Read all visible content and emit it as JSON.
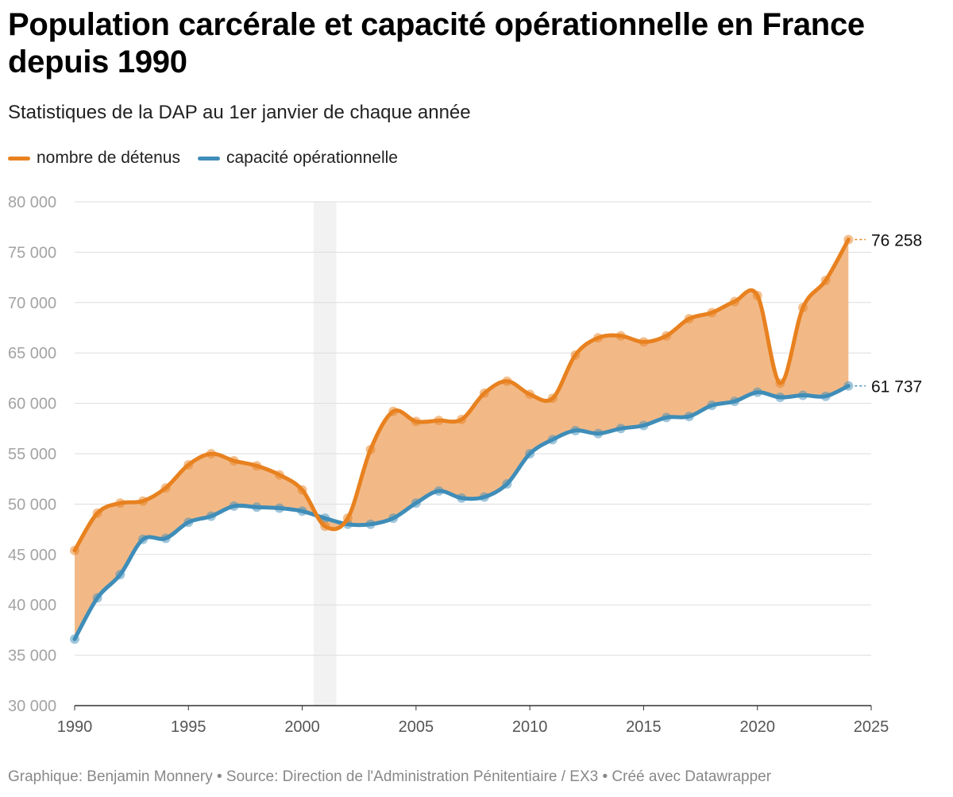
{
  "title": "Population carcérale et capacité opérationnelle en France depuis 1990",
  "subtitle": "Statistiques de la DAP au 1er janvier de chaque année",
  "footer": "Graphique: Benjamin Monnery • Source: Direction de l'Administration Pénitentiaire / EX3 • Créé avec Datawrapper",
  "colors": {
    "detenus": "#e8811f",
    "capacite": "#3f8db8",
    "area": "#f2b987",
    "grid": "#dddddd",
    "highlight": "#f2f2f2"
  },
  "chart_data": {
    "type": "line",
    "title": "Population carcérale et capacité opérationnelle en France depuis 1990",
    "xlabel": "",
    "ylabel": "",
    "xlim": [
      1990,
      2025
    ],
    "ylim": [
      30000,
      80000
    ],
    "x_ticks": [
      1990,
      1995,
      2000,
      2005,
      2010,
      2015,
      2020,
      2025
    ],
    "y_ticks": [
      30000,
      35000,
      40000,
      45000,
      50000,
      55000,
      60000,
      65000,
      70000,
      75000,
      80000
    ],
    "y_tick_labels": [
      "30 000",
      "35 000",
      "40 000",
      "45 000",
      "50 000",
      "55 000",
      "60 000",
      "65 000",
      "70 000",
      "75 000",
      "80 000"
    ],
    "x": [
      1990,
      1991,
      1992,
      1993,
      1994,
      1995,
      1996,
      1997,
      1998,
      1999,
      2000,
      2001,
      2002,
      2003,
      2004,
      2005,
      2006,
      2007,
      2008,
      2009,
      2010,
      2011,
      2012,
      2013,
      2014,
      2015,
      2016,
      2017,
      2018,
      2019,
      2020,
      2021,
      2022,
      2023,
      2024
    ],
    "series": [
      {
        "name": "nombre de détenus",
        "color": "#e8811f",
        "values": [
          45400,
          49100,
          50100,
          50300,
          51600,
          53900,
          55000,
          54300,
          53800,
          52900,
          51400,
          47800,
          48600,
          55400,
          59200,
          58200,
          58300,
          58400,
          61000,
          62200,
          60900,
          60500,
          64800,
          66500,
          66700,
          66100,
          66700,
          68400,
          69000,
          70100,
          70700,
          62000,
          69500,
          72200,
          76258
        ],
        "end_label": "76 258"
      },
      {
        "name": "capacité opérationnelle",
        "color": "#3f8db8",
        "values": [
          36600,
          40700,
          43000,
          46500,
          46600,
          48200,
          48800,
          49800,
          49700,
          49600,
          49300,
          48600,
          48000,
          48000,
          48600,
          50100,
          51300,
          50600,
          50700,
          52000,
          55000,
          56400,
          57300,
          57000,
          57500,
          57800,
          58600,
          58700,
          59800,
          60200,
          61100,
          60600,
          60800,
          60700,
          61737
        ],
        "end_label": "61 737"
      }
    ],
    "highlight_range": [
      2000.5,
      2001.5
    ],
    "legend_position": "top-left"
  }
}
